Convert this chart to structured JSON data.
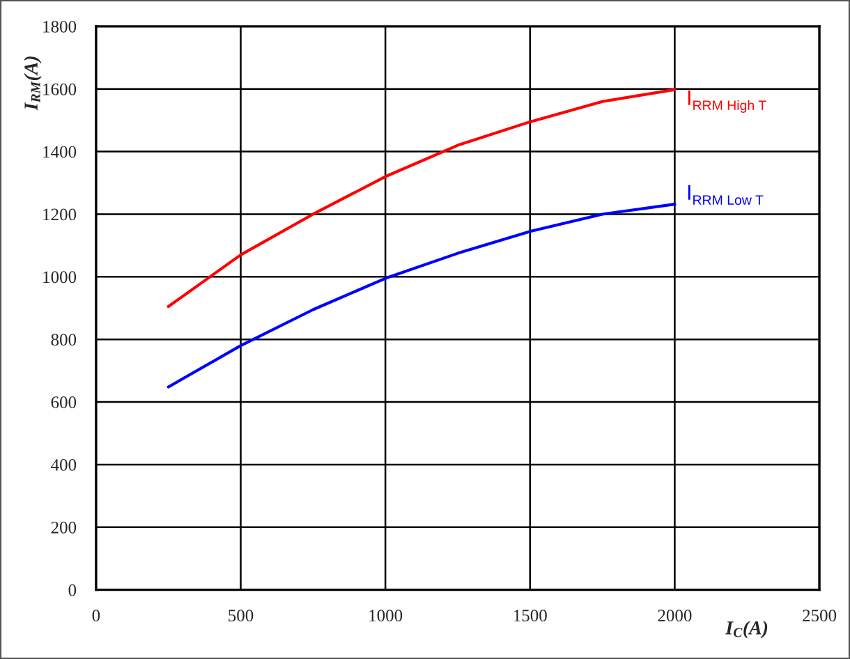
{
  "chart_data": {
    "type": "line",
    "xlabel": "I$_{C}$(A)",
    "ylabel": "I$_{RM}$(A)",
    "xlim": [
      0,
      2500
    ],
    "xticks": [
      0,
      500,
      1000,
      1500,
      2000,
      2500
    ],
    "ylim": [
      0,
      1800
    ],
    "yticks": [
      0,
      200,
      400,
      600,
      800,
      1000,
      1200,
      1400,
      1600,
      1800
    ],
    "grid": true,
    "marker": "none",
    "line_style": "solid",
    "series": [
      {
        "name": "I$_{RRM High T}$",
        "color": "#ff0000",
        "x": [
          250,
          500,
          750,
          1000,
          1250,
          1500,
          1750,
          2000
        ],
        "values": [
          905,
          1070,
          1200,
          1320,
          1420,
          1495,
          1560,
          1598
        ]
      },
      {
        "name": "I$_{RRM Low T}$",
        "color": "#0000ff",
        "x": [
          250,
          500,
          750,
          1000,
          1250,
          1500,
          1750,
          2000
        ],
        "values": [
          648,
          780,
          895,
          995,
          1075,
          1145,
          1200,
          1232
        ]
      }
    ]
  }
}
